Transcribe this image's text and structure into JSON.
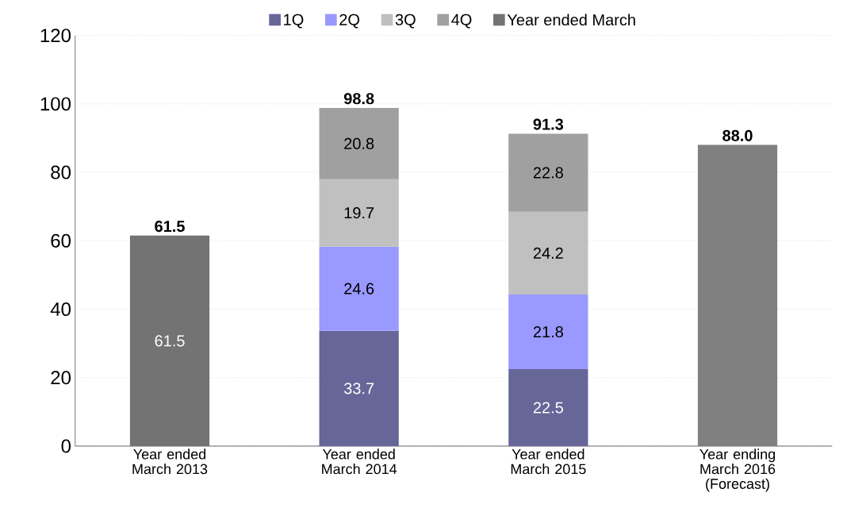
{
  "chart_data": {
    "type": "bar",
    "stacked": true,
    "categories": [
      "Year ended March 2013",
      "Year ended March 2014",
      "Year ended March 2015",
      "Year ending March 2016 (Forecast)"
    ],
    "series": [
      {
        "name": "1Q",
        "color": "#666699",
        "values": [
          null,
          33.7,
          22.5,
          null
        ],
        "value_labels": [
          null,
          "33.7",
          "22.5",
          null
        ]
      },
      {
        "name": "2Q",
        "color": "#9999ff",
        "values": [
          null,
          24.6,
          21.8,
          null
        ],
        "value_labels": [
          null,
          "24.6",
          "21.8",
          null
        ]
      },
      {
        "name": "3Q",
        "color": "#c0c0c0",
        "values": [
          null,
          19.7,
          24.2,
          null
        ],
        "value_labels": [
          null,
          "19.7",
          "24.2",
          null
        ]
      },
      {
        "name": "4Q",
        "color": "#a0a0a0",
        "values": [
          null,
          20.8,
          22.8,
          null
        ],
        "value_labels": [
          null,
          "20.8",
          "22.8",
          null
        ]
      },
      {
        "name": "Year ended March",
        "color": "#737373",
        "values": [
          61.5,
          null,
          null,
          null
        ],
        "value_labels": [
          "61.5",
          null,
          null,
          null
        ]
      },
      {
        "color": "#808080",
        "values": [
          null,
          null,
          null,
          88.0
        ]
      }
    ],
    "totals": [
      "61.5",
      "98.8",
      "91.3",
      "88.0"
    ],
    "ylim": [
      0,
      120
    ],
    "yticks": [
      0,
      20,
      40,
      60,
      80,
      100,
      120
    ],
    "grid": "y",
    "legend": "top"
  }
}
